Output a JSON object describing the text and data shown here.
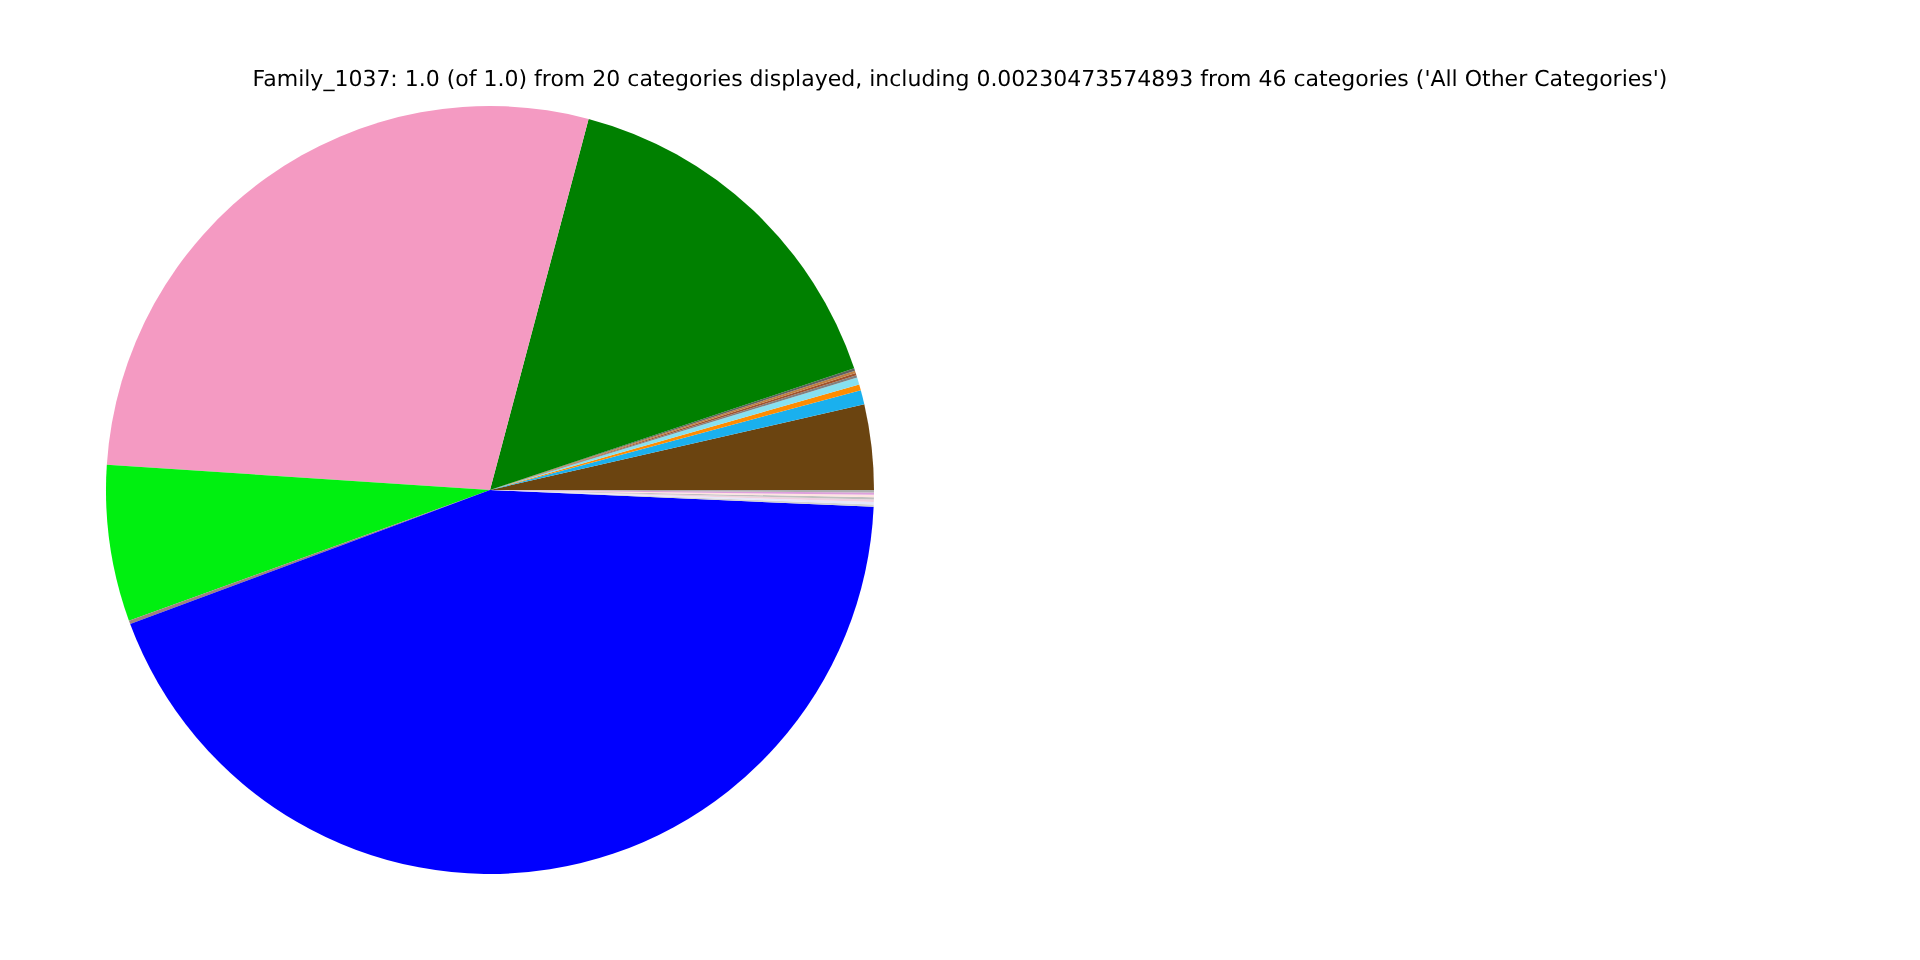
{
  "chart_data": {
    "type": "pie",
    "title": "Family_1037: 1.0 (of 1.0) from 20 categories displayed, including 0.00230473574893 from 46 categories ('All Other Categories')",
    "categories": [
      null,
      null,
      null,
      null,
      null,
      null,
      null,
      null,
      null,
      null,
      null,
      null,
      null,
      null,
      null,
      null,
      null,
      null,
      null,
      null
    ],
    "values": [
      3.6,
      0.6,
      0.25,
      0.3,
      0.1,
      0.1,
      0.1,
      0.1,
      15.8,
      28.2,
      6.6,
      0.15,
      43.8,
      0.1,
      0.1,
      0.1,
      0.1,
      0.1,
      0.1,
      0.1
    ],
    "colors": [
      "#6b4410",
      "#1ab0ee",
      "#ff8c00",
      "#87e0f0",
      "#808080",
      "#a0522d",
      "#c08040",
      "#606060",
      "#008000",
      "#f49ac2",
      "#00f010",
      "#a08080",
      "#0000ff",
      "#d3d3d3",
      "#e6e6fa",
      "#f0d0e0",
      "#c0c0c0",
      "#ffe4e1",
      "#dda0dd",
      "#b0b0b0"
    ],
    "legend": false
  }
}
